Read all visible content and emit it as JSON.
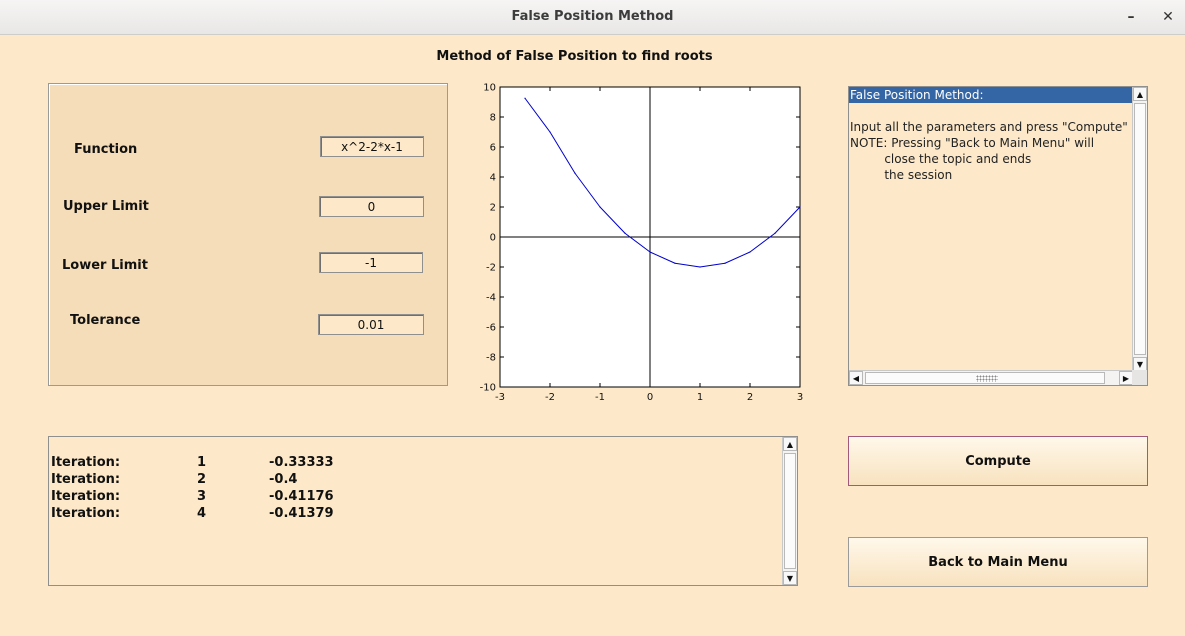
{
  "window": {
    "title": "False Position Method",
    "minimize_glyph": "–",
    "close_glyph": "✕"
  },
  "heading": "Method of False Position to find roots",
  "params": {
    "function_label": "Function",
    "function_value": "x^2-2*x-1",
    "upper_label": "Upper Limit",
    "upper_value": "0",
    "lower_label": "Lower Limit",
    "lower_value": "-1",
    "tolerance_label": "Tolerance",
    "tolerance_value": "0.01"
  },
  "chart_data": {
    "type": "line",
    "title": "",
    "xlabel": "",
    "ylabel": "",
    "xlim": [
      -3,
      3
    ],
    "ylim": [
      -10,
      10
    ],
    "xticks": [
      "-3",
      "-2",
      "-1",
      "0",
      "1",
      "2",
      "3"
    ],
    "yticks": [
      "10",
      "8",
      "6",
      "4",
      "2",
      "0",
      "-2",
      "-4",
      "-6",
      "-8",
      "-10"
    ],
    "grid": false,
    "series": [
      {
        "color": "#0000cc",
        "x": [
          -2.5,
          -2,
          -1.5,
          -1,
          -0.5,
          0,
          0.5,
          1,
          1.5,
          2,
          2.5,
          3
        ],
        "y": [
          9.25,
          7,
          4.25,
          2,
          0.25,
          -1,
          -1.75,
          -2,
          -1.75,
          -1,
          0.25,
          2
        ]
      }
    ],
    "axis_lines": {
      "x": 0,
      "y": 0
    }
  },
  "info": {
    "lines": [
      "False Position Method:",
      "",
      "Input all the parameters and press \"Compute\"",
      "NOTE: Pressing \"Back to Main Menu\" will",
      "         close the topic and ends",
      "         the session"
    ],
    "selected_index": 0
  },
  "output": {
    "rows": [
      {
        "label": "Iteration:",
        "n": "1",
        "value": "-0.33333"
      },
      {
        "label": "Iteration:",
        "n": "2",
        "value": "-0.4"
      },
      {
        "label": "Iteration:",
        "n": "3",
        "value": "-0.41176"
      },
      {
        "label": "Iteration:",
        "n": "4",
        "value": "-0.41379"
      }
    ]
  },
  "buttons": {
    "compute": "Compute",
    "back": "Back to Main Menu"
  },
  "icons": {
    "scroll_up": "▲",
    "scroll_down": "▼",
    "scroll_left": "◀",
    "scroll_right": "▶"
  }
}
